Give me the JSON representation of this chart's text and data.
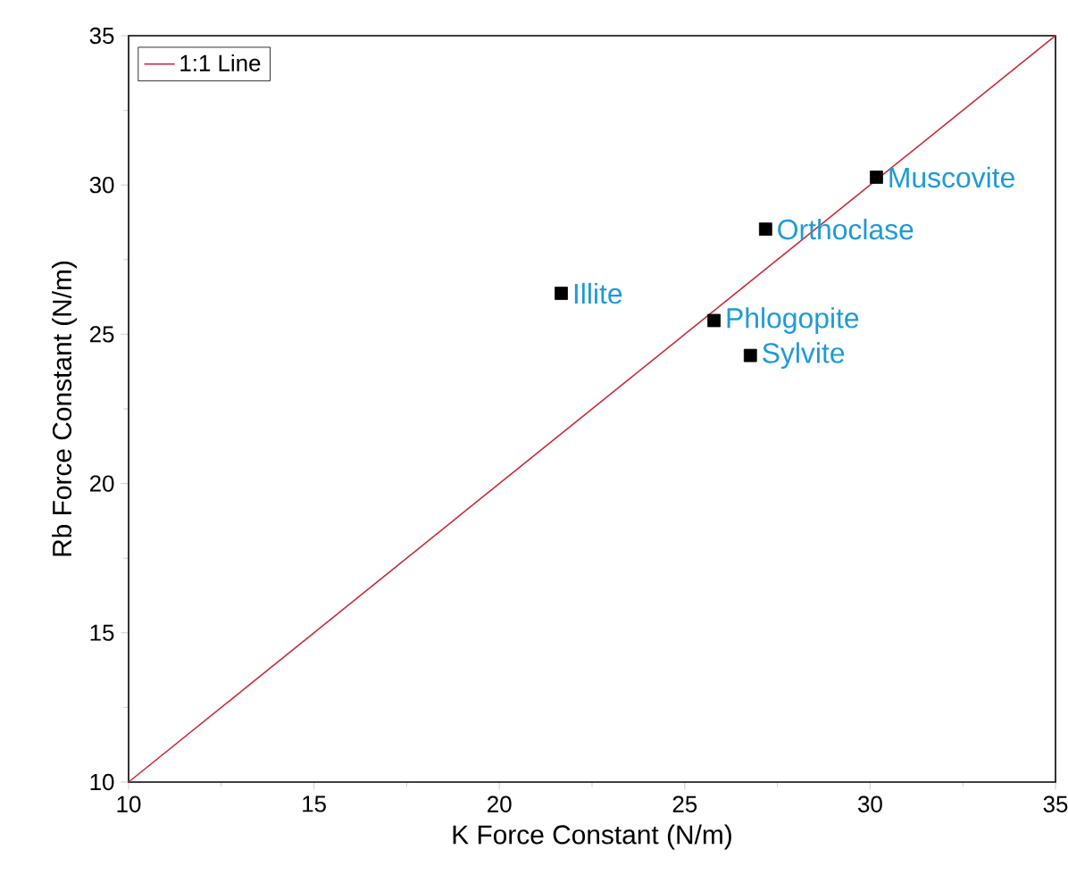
{
  "chart_data": {
    "type": "scatter",
    "xlabel": "K Force Constant (N/m)",
    "ylabel": "Rb Force Constant (N/m)",
    "xlim": [
      10,
      35
    ],
    "ylim": [
      10,
      35
    ],
    "xticks": [
      10,
      15,
      20,
      25,
      30,
      35
    ],
    "yticks": [
      10,
      15,
      20,
      25,
      30,
      35
    ],
    "legend": "top left",
    "series": [
      {
        "name": "1:1 Line",
        "type": "line",
        "color": "#c8283a",
        "x": [
          10,
          35
        ],
        "values": [
          10,
          35
        ]
      },
      {
        "marker": "square",
        "color": "#000000",
        "x": [
          30.17,
          27.18,
          21.67,
          25.79,
          26.77
        ],
        "values": [
          30.26,
          28.52,
          26.37,
          25.46,
          24.29
        ]
      }
    ],
    "annotations": [
      {
        "text": "Muscovite",
        "x": 30.17,
        "y": 30.26
      },
      {
        "text": "Orthoclase",
        "x": 27.18,
        "y": 28.52
      },
      {
        "text": "Illite",
        "x": 21.67,
        "y": 26.37
      },
      {
        "text": "Phlogopite",
        "x": 25.79,
        "y": 25.46
      },
      {
        "text": "Sylvite",
        "x": 26.77,
        "y": 24.29
      }
    ]
  }
}
